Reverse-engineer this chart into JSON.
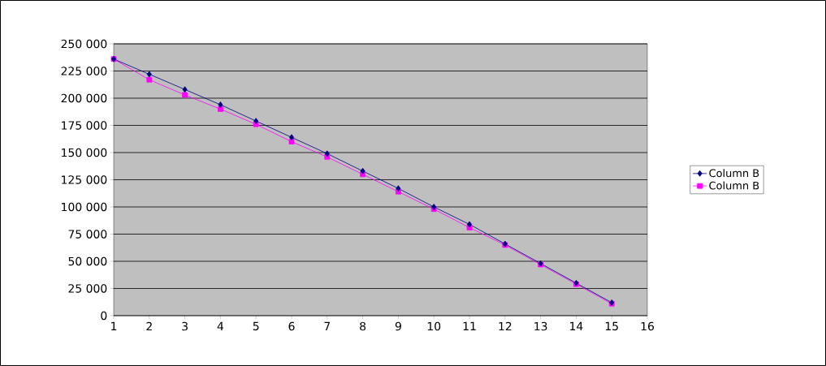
{
  "chart_data": {
    "type": "line",
    "x": [
      1,
      2,
      3,
      4,
      5,
      6,
      7,
      8,
      9,
      10,
      11,
      12,
      13,
      14,
      15
    ],
    "series": [
      {
        "name": "Column B",
        "color": "#000080",
        "marker": "diamond",
        "values": [
          236000,
          222000,
          208000,
          194000,
          179000,
          164000,
          149000,
          133000,
          117000,
          100000,
          84000,
          66000,
          48000,
          30000,
          12000
        ]
      },
      {
        "name": "Column B",
        "color": "#ff00ff",
        "marker": "square",
        "values": [
          236000,
          217000,
          203000,
          190000,
          176000,
          160000,
          146000,
          130000,
          114000,
          98000,
          81000,
          65000,
          47000,
          29000,
          11000
        ]
      }
    ],
    "xlim": [
      1,
      16
    ],
    "xticks": [
      1,
      2,
      3,
      4,
      5,
      6,
      7,
      8,
      9,
      10,
      11,
      12,
      13,
      14,
      15,
      16
    ],
    "ylim": [
      0,
      250000
    ],
    "yticks": [
      {
        "value": 0,
        "label": "0"
      },
      {
        "value": 25000,
        "label": "25 000"
      },
      {
        "value": 50000,
        "label": "50 000"
      },
      {
        "value": 75000,
        "label": "75 000"
      },
      {
        "value": 100000,
        "label": "100 000"
      },
      {
        "value": 125000,
        "label": "125 000"
      },
      {
        "value": 150000,
        "label": "150 000"
      },
      {
        "value": 175000,
        "label": "175 000"
      },
      {
        "value": 200000,
        "label": "200 000"
      },
      {
        "value": 225000,
        "label": "225 000"
      },
      {
        "value": 250000,
        "label": "250 000"
      }
    ],
    "grid": "y",
    "legend": "right",
    "line_style": "solid"
  }
}
